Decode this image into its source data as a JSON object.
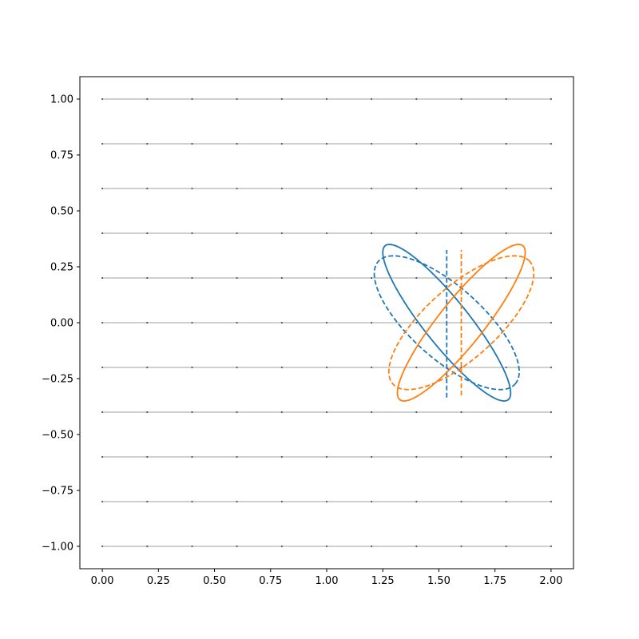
{
  "chart_data": {
    "type": "line",
    "title": "",
    "xlabel": "",
    "ylabel": "",
    "xlim": [
      -0.1,
      2.1
    ],
    "ylim": [
      -1.1,
      1.1
    ],
    "x_ticks": [
      "0.00",
      "0.25",
      "0.50",
      "0.75",
      "1.00",
      "1.25",
      "1.50",
      "1.75",
      "2.00"
    ],
    "y_ticks": [
      "-1.00",
      "-0.75",
      "-0.50",
      "-0.25",
      "0.00",
      "0.25",
      "0.50",
      "0.75",
      "1.00"
    ],
    "grid": false,
    "legend": "none",
    "reference_lines": {
      "y_values": [
        -1.0,
        -0.8,
        -0.6,
        -0.4,
        -0.2,
        0.0,
        0.2,
        0.4,
        0.6,
        0.8,
        1.0
      ],
      "x_range": [
        0.0,
        2.0
      ],
      "point_spacing": 0.2,
      "color": "#808080"
    },
    "series": [
      {
        "style": "solid",
        "color": "#1f77b4",
        "shape": "ellipse",
        "center": [
          1.535,
          0.0
        ],
        "semi_axes": [
          0.44,
          0.1
        ],
        "angle_deg": -51.5
      },
      {
        "style": "dashed",
        "color": "#1f77b4",
        "shape": "ellipse",
        "center": [
          1.535,
          0.0
        ],
        "semi_axes": [
          0.41,
          0.16
        ],
        "angle_deg": -42
      },
      {
        "style": "dashed",
        "color": "#1f77b4",
        "shape": "vline",
        "x": 1.535,
        "y_range": [
          -0.335,
          0.325
        ]
      },
      {
        "style": "solid",
        "color": "#ff7f0e",
        "shape": "ellipse",
        "center": [
          1.6,
          0.0
        ],
        "semi_axes": [
          0.44,
          0.1
        ],
        "angle_deg": 51.5
      },
      {
        "style": "dashed",
        "color": "#ff7f0e",
        "shape": "ellipse",
        "center": [
          1.6,
          0.0
        ],
        "semi_axes": [
          0.41,
          0.16
        ],
        "angle_deg": 42
      },
      {
        "style": "dashed",
        "color": "#ff7f0e",
        "shape": "vline",
        "x": 1.6,
        "y_range": [
          -0.325,
          0.325
        ]
      }
    ]
  }
}
